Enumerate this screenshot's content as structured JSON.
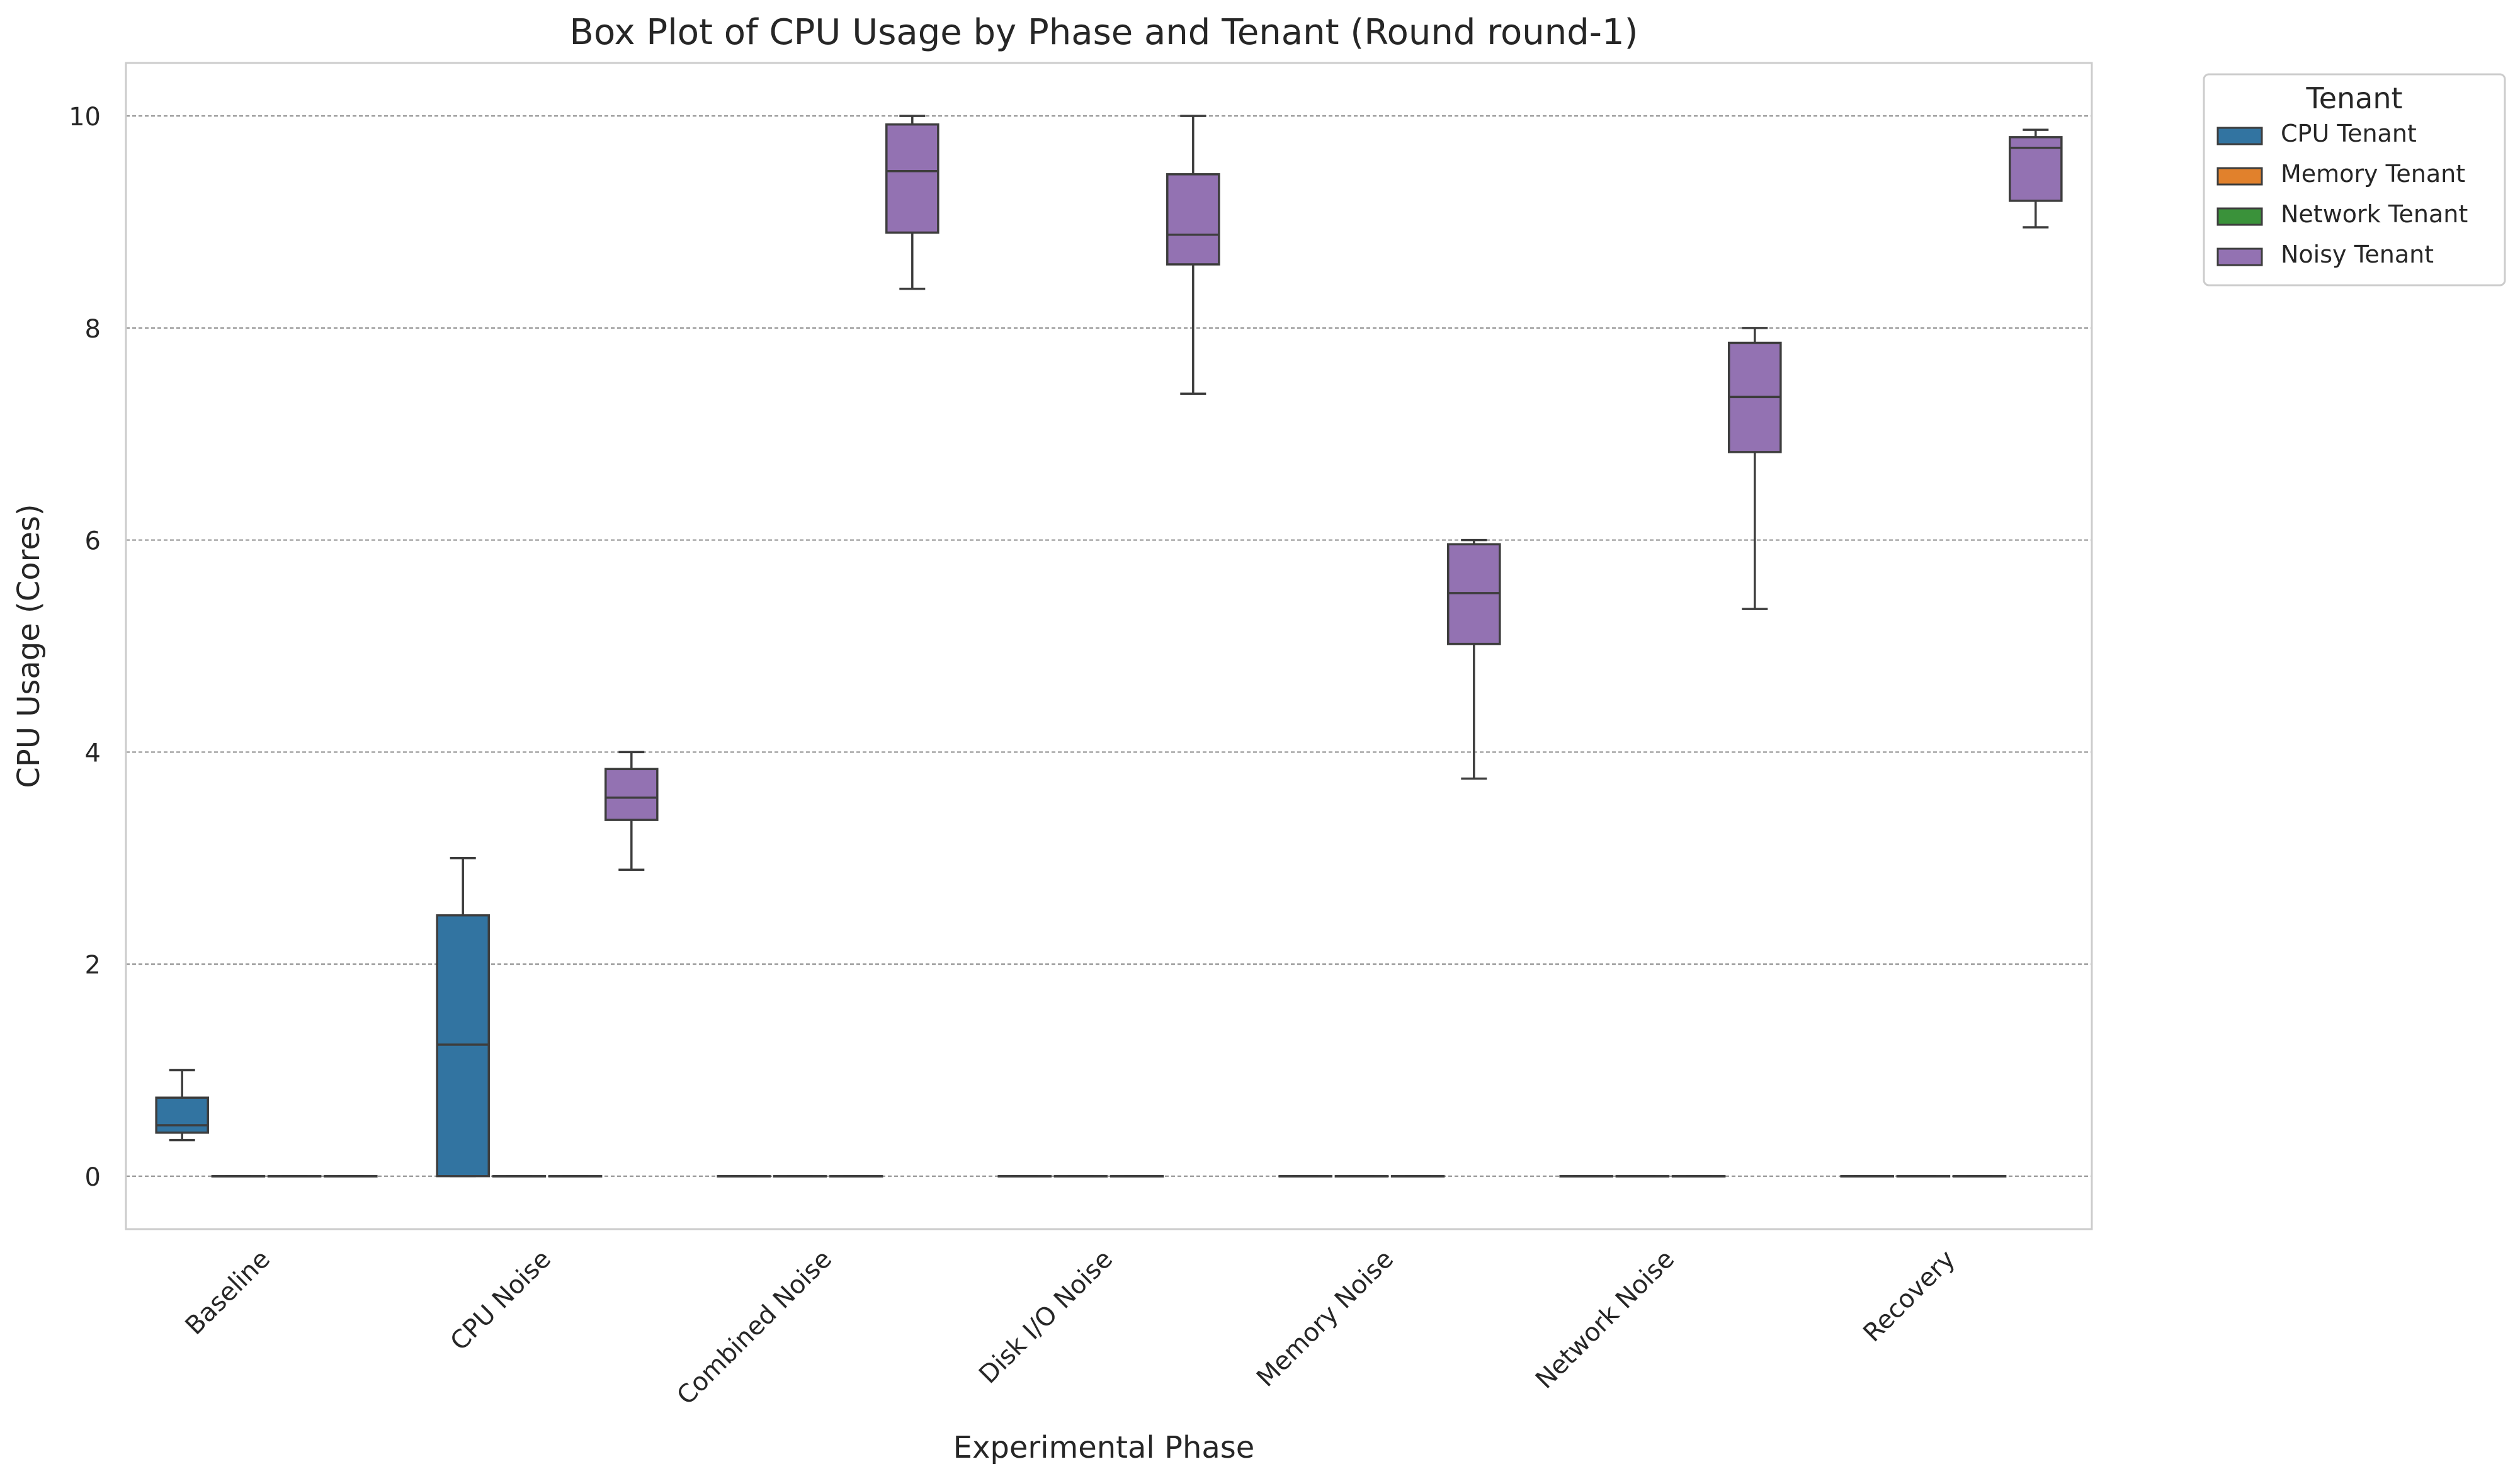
{
  "chart_data": {
    "type": "box",
    "title": "Box Plot of CPU Usage by Phase and Tenant (Round round-1)",
    "xlabel": "Experimental Phase",
    "ylabel": "CPU Usage (Cores)",
    "ylim": [
      -0.5,
      10.5
    ],
    "yticks": [
      0,
      2,
      4,
      6,
      8,
      10
    ],
    "grid": true,
    "legend": {
      "title": "Tenant",
      "placement": "outside-top-right"
    },
    "categories": [
      "Baseline",
      "CPU Noise",
      "Combined Noise",
      "Disk I/O Noise",
      "Memory Noise",
      "Network Noise",
      "Recovery"
    ],
    "series": [
      {
        "name": "CPU Tenant",
        "color": "#3274a1",
        "boxes": [
          {
            "whislo": 0.34,
            "q1": 0.41,
            "med": 0.48,
            "q3": 0.74,
            "whishi": 1.0
          },
          {
            "whislo": 0.0,
            "q1": 0.0,
            "med": 1.24,
            "q3": 2.46,
            "whishi": 3.0
          },
          {
            "whislo": 0.0,
            "q1": 0.0,
            "med": 0.0,
            "q3": 0.0,
            "whishi": 0.0
          },
          {
            "whislo": 0.0,
            "q1": 0.0,
            "med": 0.0,
            "q3": 0.0,
            "whishi": 0.0
          },
          {
            "whislo": 0.0,
            "q1": 0.0,
            "med": 0.0,
            "q3": 0.0,
            "whishi": 0.0
          },
          {
            "whislo": 0.0,
            "q1": 0.0,
            "med": 0.0,
            "q3": 0.0,
            "whishi": 0.0
          },
          {
            "whislo": 0.0,
            "q1": 0.0,
            "med": 0.0,
            "q3": 0.0,
            "whishi": 0.0
          }
        ]
      },
      {
        "name": "Memory Tenant",
        "color": "#e1812c",
        "boxes": [
          {
            "whislo": 0.0,
            "q1": 0.0,
            "med": 0.0,
            "q3": 0.0,
            "whishi": 0.0
          },
          {
            "whislo": 0.0,
            "q1": 0.0,
            "med": 0.0,
            "q3": 0.0,
            "whishi": 0.0
          },
          {
            "whislo": 0.0,
            "q1": 0.0,
            "med": 0.0,
            "q3": 0.0,
            "whishi": 0.0
          },
          {
            "whislo": 0.0,
            "q1": 0.0,
            "med": 0.0,
            "q3": 0.0,
            "whishi": 0.0
          },
          {
            "whislo": 0.0,
            "q1": 0.0,
            "med": 0.0,
            "q3": 0.0,
            "whishi": 0.0
          },
          {
            "whislo": 0.0,
            "q1": 0.0,
            "med": 0.0,
            "q3": 0.0,
            "whishi": 0.0
          },
          {
            "whislo": 0.0,
            "q1": 0.0,
            "med": 0.0,
            "q3": 0.0,
            "whishi": 0.0
          }
        ]
      },
      {
        "name": "Network Tenant",
        "color": "#3a923a",
        "boxes": [
          {
            "whislo": 0.0,
            "q1": 0.0,
            "med": 0.0,
            "q3": 0.0,
            "whishi": 0.0
          },
          {
            "whislo": 0.0,
            "q1": 0.0,
            "med": 0.0,
            "q3": 0.0,
            "whishi": 0.0
          },
          {
            "whislo": 0.0,
            "q1": 0.0,
            "med": 0.0,
            "q3": 0.0,
            "whishi": 0.0
          },
          {
            "whislo": 0.0,
            "q1": 0.0,
            "med": 0.0,
            "q3": 0.0,
            "whishi": 0.0
          },
          {
            "whislo": 0.0,
            "q1": 0.0,
            "med": 0.0,
            "q3": 0.0,
            "whishi": 0.0
          },
          {
            "whislo": 0.0,
            "q1": 0.0,
            "med": 0.0,
            "q3": 0.0,
            "whishi": 0.0
          },
          {
            "whislo": 0.0,
            "q1": 0.0,
            "med": 0.0,
            "q3": 0.0,
            "whishi": 0.0
          }
        ]
      },
      {
        "name": "Noisy Tenant",
        "color": "#9372b2",
        "boxes": [
          {
            "whislo": 0.0,
            "q1": 0.0,
            "med": 0.0,
            "q3": 0.0,
            "whishi": 0.0
          },
          {
            "whislo": 2.89,
            "q1": 3.36,
            "med": 3.57,
            "q3": 3.84,
            "whishi": 4.0
          },
          {
            "whislo": 8.37,
            "q1": 8.9,
            "med": 9.48,
            "q3": 9.92,
            "whishi": 10.0
          },
          {
            "whislo": 7.38,
            "q1": 8.6,
            "med": 8.88,
            "q3": 9.45,
            "whishi": 10.0
          },
          {
            "whislo": 3.75,
            "q1": 5.02,
            "med": 5.5,
            "q3": 5.96,
            "whishi": 6.0
          },
          {
            "whislo": 5.35,
            "q1": 6.83,
            "med": 7.35,
            "q3": 7.86,
            "whishi": 8.0
          },
          {
            "whislo": 8.95,
            "q1": 9.2,
            "med": 9.7,
            "q3": 9.8,
            "whishi": 9.87
          }
        ]
      }
    ]
  }
}
